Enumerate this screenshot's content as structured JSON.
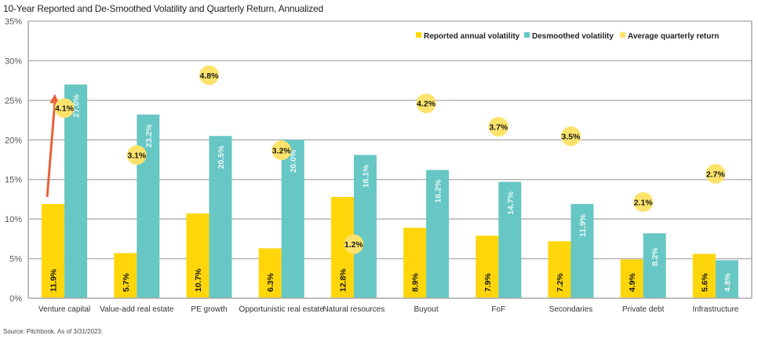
{
  "title": "10-Year Reported and De-Smoothed Volatility and Quarterly Return, Annualized",
  "source": "Source: Pitchbook. As of 3/31/2023.",
  "colors": {
    "reported": "#FFD60A",
    "desmoothed": "#66C7C4",
    "return": "#FDE36B",
    "arrow": "#E8623A",
    "grid": "#b5b5b5"
  },
  "chart_data": {
    "type": "bar",
    "title": "10-Year Reported and De-Smoothed Volatility and Quarterly Return, Annualized",
    "xlabel": "",
    "ylabel": "",
    "ylim": [
      0,
      35
    ],
    "yticks": [
      0,
      5,
      10,
      15,
      20,
      25,
      30,
      35
    ],
    "ytick_labels": [
      "0%",
      "5%",
      "10%",
      "15%",
      "20%",
      "25%",
      "30%",
      "35%"
    ],
    "secondary_ylim": [
      0,
      5.9
    ],
    "grid": true,
    "legend_position": "top-right",
    "categories": [
      "Venture capital",
      "Value-add real estate",
      "PE growth",
      "Opportunistic real estate",
      "Natural resources",
      "Buyout",
      "FoF",
      "Secondaries",
      "Private debt",
      "Infrastructure"
    ],
    "series": [
      {
        "name": "Reported annual volatility",
        "type": "bar",
        "values": [
          11.9,
          5.7,
          10.7,
          6.3,
          12.8,
          8.9,
          7.9,
          7.2,
          4.9,
          5.6
        ],
        "labels": [
          "11.9%",
          "5.7%",
          "10.7%",
          "6.3%",
          "12.8%",
          "8.9%",
          "7.9%",
          "7.2%",
          "4.9%",
          "5.6%"
        ]
      },
      {
        "name": "Desmoothed volatility",
        "type": "bar",
        "values": [
          27.0,
          23.2,
          20.5,
          20.0,
          18.1,
          16.2,
          14.7,
          11.9,
          8.2,
          4.8
        ],
        "labels": [
          "27.0%",
          "23.2%",
          "20.5%",
          "20.0%",
          "18.1%",
          "16.2%",
          "14.7%",
          "11.9%",
          "8.2%",
          "4.8%"
        ]
      },
      {
        "name": "Average quarterly return",
        "type": "scatter",
        "axis": "secondary",
        "values": [
          4.1,
          3.1,
          4.8,
          3.2,
          1.2,
          4.2,
          3.7,
          3.5,
          2.1,
          2.7
        ],
        "labels": [
          "4.1%",
          "3.1%",
          "4.8%",
          "3.2%",
          "1.2%",
          "4.2%",
          "3.7%",
          "3.5%",
          "2.1%",
          "2.7%"
        ]
      }
    ],
    "annotations": [
      {
        "type": "arrow",
        "category": "Venture capital",
        "from_value": 11.9,
        "to_value": 27.0,
        "description": "upward arrow from reported to desmoothed volatility"
      }
    ]
  }
}
